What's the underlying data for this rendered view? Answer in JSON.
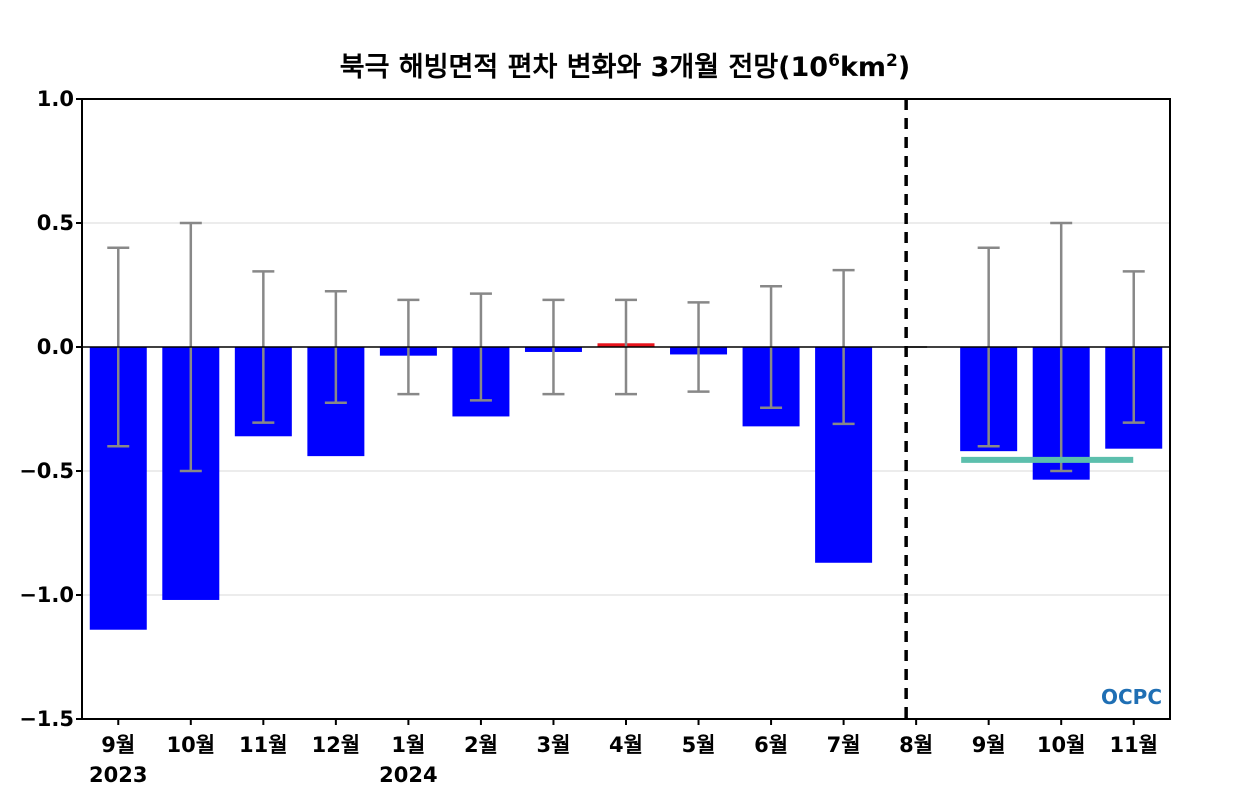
{
  "chart_data": {
    "type": "bar",
    "title": "북극 해빙면적 편차 변화와 3개월 전망(10",
    "title_exp": "6",
    "title_unit": "km",
    "title_unit_exp": "2",
    "title_close": ")",
    "categories": [
      "9월",
      "10월",
      "11월",
      "12월",
      "1월",
      "2월",
      "3월",
      "4월",
      "5월",
      "6월",
      "7월",
      "8월",
      "9월",
      "10월",
      "11월"
    ],
    "year_labels": [
      {
        "index": 0,
        "label": "2023"
      },
      {
        "index": 4,
        "label": "2024"
      }
    ],
    "values": [
      -1.14,
      -1.02,
      -0.36,
      -0.44,
      -0.035,
      -0.28,
      -0.02,
      0.015,
      -0.03,
      -0.32,
      -0.87,
      0.0,
      -0.42,
      -0.535,
      -0.41
    ],
    "error": [
      0.4,
      0.5,
      0.305,
      0.225,
      0.19,
      0.215,
      0.19,
      0.19,
      0.18,
      0.245,
      0.31,
      0.0,
      0.4,
      0.5,
      0.305
    ],
    "bar_colors": [
      "#0000ff",
      "#0000ff",
      "#0000ff",
      "#0000ff",
      "#0000ff",
      "#0000ff",
      "#0000ff",
      "#e8141c",
      "#0000ff",
      "#0000ff",
      "#0000ff",
      "#0000ff",
      "#0000ff",
      "#0000ff",
      "#0000ff"
    ],
    "forecast_mean": {
      "value": -0.455,
      "from_index": 12,
      "to_index": 14,
      "color": "#5cbfad"
    },
    "divider_index": 11,
    "ylim": [
      -1.5,
      1.0
    ],
    "yticks": [
      1.0,
      0.5,
      0.0,
      -0.5,
      -1.0,
      -1.5
    ],
    "ytick_labels": [
      "1.0",
      "0.5",
      "0.0",
      "−0.5",
      "−1.0",
      "−1.5"
    ],
    "grid": true,
    "error_color": "#888888",
    "grid_color": "#e6e6e6"
  },
  "logo": {
    "text": "OCPC",
    "color": "#1f6fb4"
  }
}
